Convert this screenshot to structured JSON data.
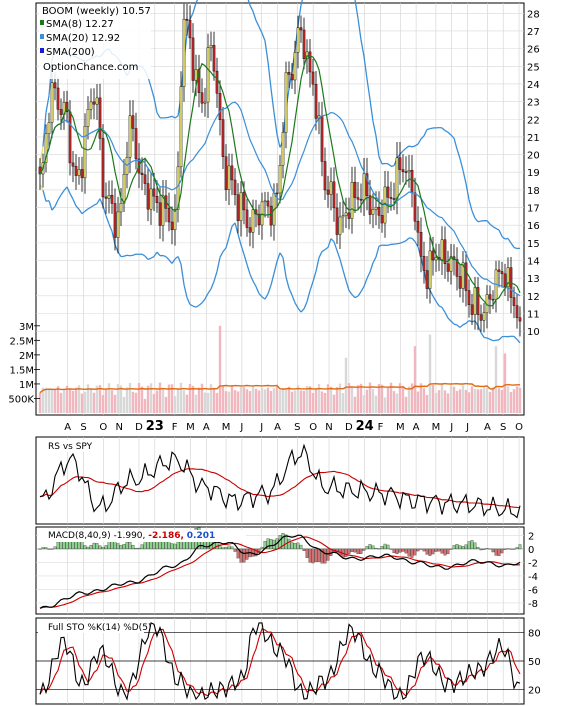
{
  "colors": {
    "up_candle": "#e8e070",
    "down_candle": "#c0282a",
    "sma8": "#1a7a1a",
    "sma20": "#3a8fd8",
    "bollinger": "#3a8fd8",
    "bollinger_squeeze": "#e8e070",
    "volume_up": "#f2b6be",
    "volume_down": "#d8d8d8",
    "volume_avg": "#e06a10",
    "rs": "#000000",
    "rs_ma": "#cc0000",
    "macd": "#000000",
    "macd_signal": "#cc0000",
    "macd_hist_pos": "#8ed08e",
    "macd_hist_neg": "#d07070",
    "sto_k": "#000000",
    "sto_d": "#cc0000",
    "val_red": "#cc0000",
    "val_blue": "#1a50c8"
  },
  "chart_data": [
    {
      "type": "candlestick",
      "panel": "price",
      "title": "BOOM (weekly) 10.57",
      "watermark": "OptionChance.com",
      "legend": [
        {
          "label": "SMA(8) 12.27",
          "color": "#1a7a1a"
        },
        {
          "label": "SMA(20) 12.92",
          "color": "#3a8fd8"
        },
        {
          "label": "SMA(200)",
          "color": "#1a1ad0"
        }
      ],
      "y_ticks": [
        10,
        11,
        12,
        13,
        14,
        15,
        16,
        17,
        18,
        19,
        20,
        21,
        22,
        23,
        24,
        25,
        26,
        27,
        28
      ],
      "ylim": [
        9.5,
        28.3
      ],
      "x_labels": [
        "A",
        "S",
        "O",
        "N",
        "D",
        "23",
        "F",
        "M",
        "A",
        "M",
        "J",
        "J",
        "A",
        "S",
        "O",
        "N",
        "D",
        "24",
        "F",
        "M",
        "A",
        "M",
        "J",
        "J",
        "A",
        "S",
        "O"
      ],
      "price_anchors": [
        [
          0,
          18.5
        ],
        [
          4,
          23.5
        ],
        [
          8,
          22.5
        ],
        [
          12,
          18.5
        ],
        [
          18,
          23.5
        ],
        [
          22,
          17.5
        ],
        [
          26,
          16.2
        ],
        [
          30,
          21.5
        ],
        [
          35,
          18.0
        ],
        [
          40,
          17.0
        ],
        [
          45,
          16.2
        ],
        [
          48,
          27.5
        ],
        [
          54,
          23.0
        ],
        [
          57,
          26.0
        ],
        [
          62,
          19.0
        ],
        [
          67,
          17.0
        ],
        [
          70,
          16.0
        ],
        [
          74,
          17.0
        ],
        [
          78,
          17.0
        ],
        [
          83,
          24.5
        ],
        [
          87,
          27.0
        ],
        [
          90,
          24.5
        ],
        [
          96,
          18.0
        ],
        [
          100,
          16.0
        ],
        [
          104,
          17.5
        ],
        [
          108,
          18.0
        ],
        [
          112,
          16.5
        ],
        [
          116,
          17.5
        ],
        [
          121,
          19.5
        ],
        [
          124,
          18.0
        ],
        [
          127,
          14.0
        ],
        [
          129,
          13.2
        ],
        [
          132,
          14.5
        ],
        [
          136,
          14.0
        ],
        [
          140,
          13.2
        ],
        [
          144,
          11.5
        ],
        [
          148,
          11.0
        ],
        [
          151,
          12.5
        ],
        [
          154,
          13.5
        ],
        [
          157,
          12.2
        ],
        [
          160,
          10.57
        ]
      ]
    },
    {
      "type": "bar",
      "panel": "volume",
      "y_ticks": [
        "500K",
        "1M",
        "1.5M",
        "2M",
        "2.5M",
        "3M"
      ],
      "ylim": [
        0,
        3200000
      ],
      "spikes": [
        [
          60,
          3000000
        ],
        [
          102,
          1900000
        ],
        [
          125,
          2300000
        ],
        [
          130,
          2700000
        ],
        [
          152,
          2300000
        ],
        [
          155,
          2050000
        ]
      ]
    },
    {
      "type": "line",
      "panel": "rs",
      "title": "RS vs SPY",
      "series": [
        {
          "name": "RS vs SPY"
        }
      ]
    },
    {
      "type": "line",
      "panel": "macd",
      "title": "MACD(8,40,9)",
      "values_text": [
        "-1.990,",
        "-2.186,",
        "0.201"
      ],
      "y_ticks": [
        2,
        0,
        -2,
        -4,
        -6,
        -8
      ],
      "ylim": [
        -9.2,
        2.8
      ],
      "anchors": [
        [
          0,
          -8.8
        ],
        [
          15,
          -6.5
        ],
        [
          30,
          -5.0
        ],
        [
          45,
          -2.5
        ],
        [
          55,
          0.5
        ],
        [
          62,
          1.0
        ],
        [
          70,
          -0.8
        ],
        [
          85,
          2.0
        ],
        [
          95,
          -0.5
        ],
        [
          105,
          -1.5
        ],
        [
          115,
          -1.0
        ],
        [
          125,
          -2.0
        ],
        [
          135,
          -2.8
        ],
        [
          145,
          -1.8
        ],
        [
          155,
          -2.5
        ],
        [
          160,
          -1.99
        ]
      ]
    },
    {
      "type": "line",
      "panel": "sto",
      "title": "Full STO %K(14) %D(5)",
      "y_ticks": [
        80,
        50,
        20
      ],
      "ylim": [
        8,
        92
      ]
    }
  ]
}
